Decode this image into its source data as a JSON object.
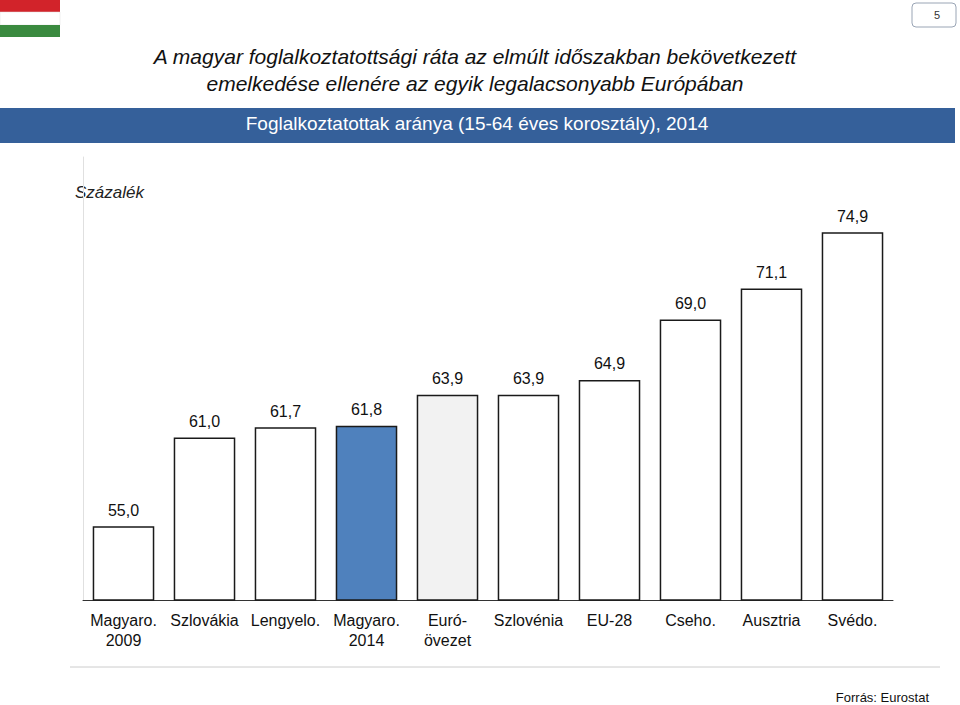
{
  "chart_data": {
    "type": "bar",
    "title": "A magyar foglalkoztatottsági ráta az elmúlt időszakban bekövetkezett\nemelkedése ellenére az egyik legalacsonyabb Európában",
    "subtitle": "Foglalkoztatottak aránya (15-64 éves korosztály), 2014",
    "ylabel": "Százalék",
    "source": "Forrás: Eurostat",
    "page": "5",
    "categories": [
      "Magyaro.\n2009",
      "Szlovákia",
      "Lengyelo.",
      "Magyaro.\n2014",
      "Euró-\növezet",
      "Szlovénia",
      "EU-28",
      "Cseho.",
      "Ausztria",
      "Svédo."
    ],
    "values": [
      55.0,
      61.0,
      61.7,
      61.8,
      63.9,
      63.9,
      64.9,
      69.0,
      71.1,
      74.9
    ],
    "value_labels": [
      "55,0",
      "61,0",
      "61,7",
      "61,8",
      "63,9",
      "63,9",
      "64,9",
      "69,0",
      "71,1",
      "74,9"
    ],
    "colors": [
      "#ffffff",
      "#ffffff",
      "#ffffff",
      "#4f81bd",
      "#f2f2f2",
      "#ffffff",
      "#ffffff",
      "#ffffff",
      "#ffffff",
      "#ffffff"
    ],
    "ylim": [
      50,
      80
    ],
    "grid": false,
    "data_labels": true,
    "tick_labels": "x"
  }
}
